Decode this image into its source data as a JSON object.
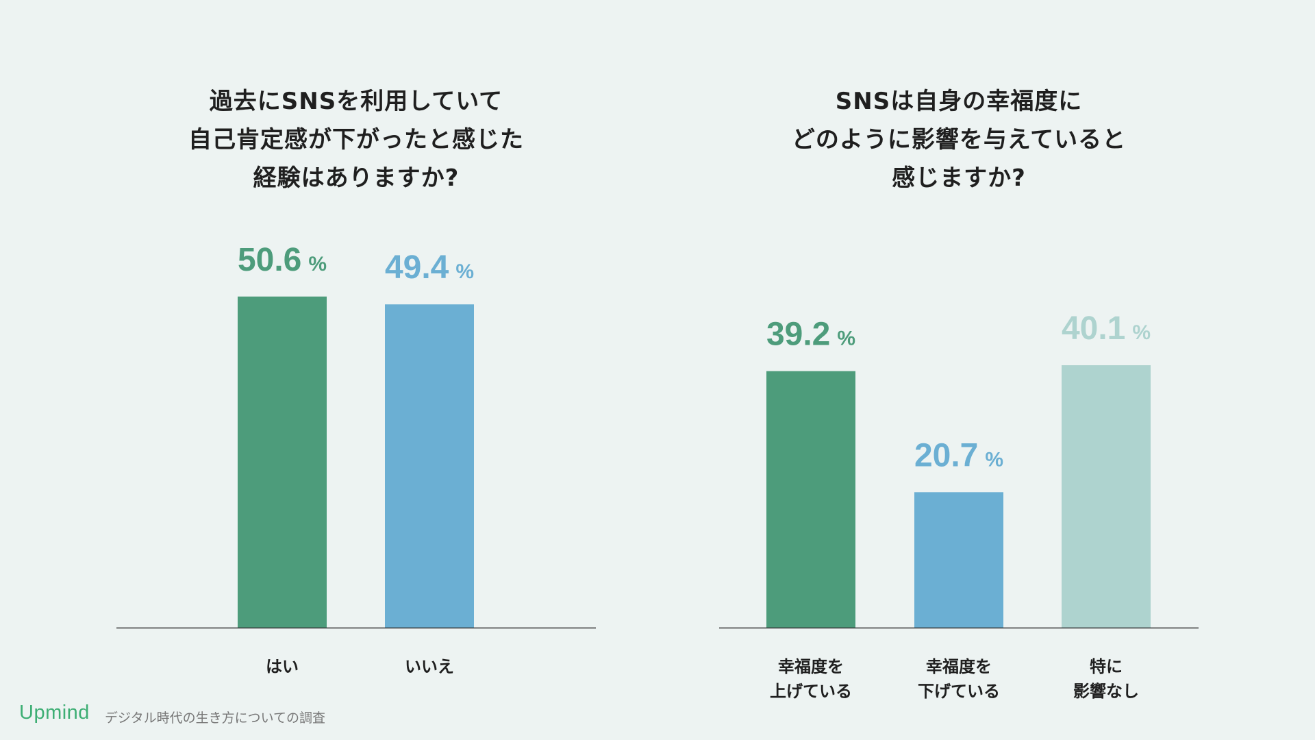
{
  "brand": {
    "logo_text": "Upmind",
    "caption": "デジタル時代の生き方についての調査"
  },
  "colors": {
    "background": "#edf3f2",
    "green": "#4d9c7b",
    "blue": "#6bafd3",
    "pale": "#aed3cf",
    "axis": "#333333"
  },
  "chart_data": [
    {
      "type": "bar",
      "title_lines": [
        "過去にSNSを利用していて",
        "自己肯定感が下がったと感じた",
        "経験はありますか?"
      ],
      "categories": [
        [
          "はい"
        ],
        [
          "いいえ"
        ]
      ],
      "values": [
        50.6,
        49.4
      ],
      "value_labels": [
        "50.6",
        "49.4"
      ],
      "unit": "%",
      "bar_colors": [
        "green",
        "blue"
      ],
      "ylim": [
        0,
        100
      ],
      "xlabel": "",
      "ylabel": ""
    },
    {
      "type": "bar",
      "title_lines": [
        "SNSは自身の幸福度に",
        "どのように影響を与えていると",
        "感じますか?"
      ],
      "categories": [
        [
          "幸福度を",
          "上げている"
        ],
        [
          "幸福度を",
          "下げている"
        ],
        [
          "特に",
          "影響なし"
        ]
      ],
      "values": [
        39.2,
        20.7,
        40.1
      ],
      "value_labels": [
        "39.2",
        "20.7",
        "40.1"
      ],
      "unit": "%",
      "bar_colors": [
        "green",
        "blue",
        "pale"
      ],
      "ylim": [
        0,
        100
      ],
      "xlabel": "",
      "ylabel": ""
    }
  ]
}
